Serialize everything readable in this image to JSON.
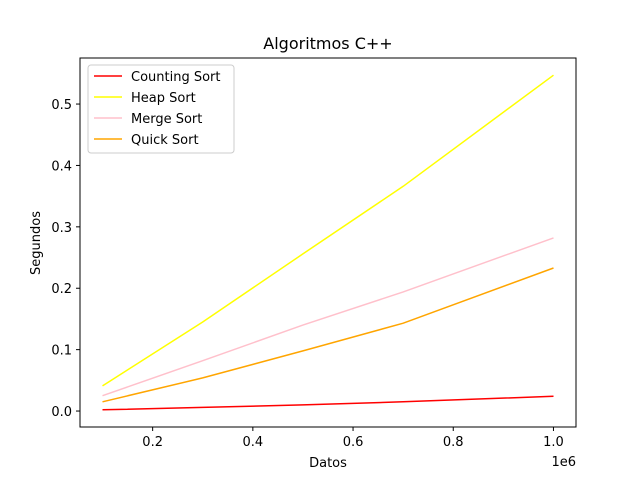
{
  "chart_data": {
    "type": "line",
    "title": "Algoritmos C++",
    "xlabel": "Datos",
    "ylabel": "Segundos",
    "x_offset_label": "1e6",
    "xlim": [
      55000,
      1045000
    ],
    "ylim": [
      -0.026,
      0.575
    ],
    "x_ticks": [
      200000,
      400000,
      600000,
      800000,
      1000000
    ],
    "x_tick_labels": [
      "0.2",
      "0.4",
      "0.6",
      "0.8",
      "1.0"
    ],
    "y_ticks": [
      0.0,
      0.1,
      0.2,
      0.3,
      0.4,
      0.5
    ],
    "y_tick_labels": [
      "0.0",
      "0.1",
      "0.2",
      "0.3",
      "0.4",
      "0.5"
    ],
    "grid": false,
    "legend_position": "top-left",
    "x": [
      100000,
      300000,
      500000,
      700000,
      1000000
    ],
    "series": [
      {
        "name": "Counting Sort",
        "color": "#ff0000",
        "values": [
          0.002,
          0.006,
          0.01,
          0.015,
          0.024
        ]
      },
      {
        "name": "Heap Sort",
        "color": "#ffff00",
        "values": [
          0.041,
          0.145,
          0.256,
          0.366,
          0.547
        ]
      },
      {
        "name": "Merge Sort",
        "color": "#ffc0cb",
        "values": [
          0.025,
          0.082,
          0.14,
          0.194,
          0.282
        ]
      },
      {
        "name": "Quick Sort",
        "color": "#ffa500",
        "values": [
          0.015,
          0.054,
          0.098,
          0.143,
          0.233
        ]
      }
    ]
  }
}
